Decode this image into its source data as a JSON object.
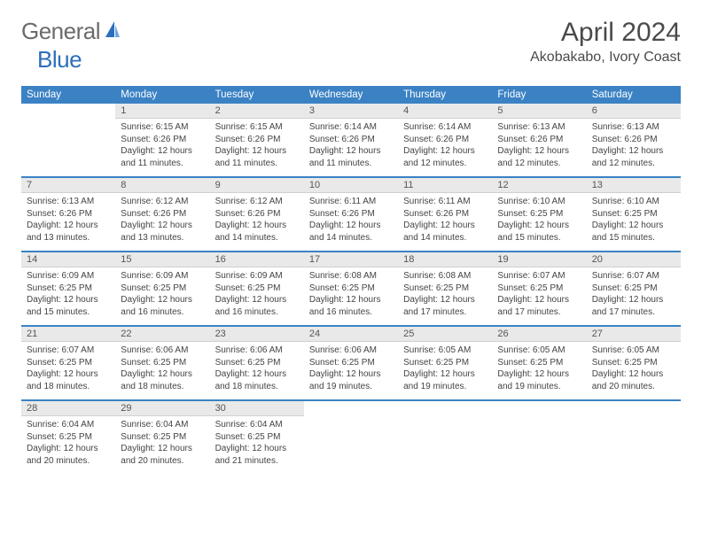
{
  "brand": {
    "name1": "General",
    "name2": "Blue"
  },
  "title": "April 2024",
  "location": "Akobakabo, Ivory Coast",
  "colors": {
    "header_bg": "#3b82c4",
    "header_text": "#ffffff",
    "daynum_bg": "#e9e9e9",
    "border": "#3b82c4",
    "page_bg": "#ffffff",
    "text": "#333333",
    "logo_gray": "#6b6b6b",
    "logo_blue": "#2c6fbb"
  },
  "day_headers": [
    "Sunday",
    "Monday",
    "Tuesday",
    "Wednesday",
    "Thursday",
    "Friday",
    "Saturday"
  ],
  "weeks": [
    [
      {
        "n": "",
        "sr": "",
        "ss": "",
        "dl": ""
      },
      {
        "n": "1",
        "sr": "Sunrise: 6:15 AM",
        "ss": "Sunset: 6:26 PM",
        "dl": "Daylight: 12 hours and 11 minutes."
      },
      {
        "n": "2",
        "sr": "Sunrise: 6:15 AM",
        "ss": "Sunset: 6:26 PM",
        "dl": "Daylight: 12 hours and 11 minutes."
      },
      {
        "n": "3",
        "sr": "Sunrise: 6:14 AM",
        "ss": "Sunset: 6:26 PM",
        "dl": "Daylight: 12 hours and 11 minutes."
      },
      {
        "n": "4",
        "sr": "Sunrise: 6:14 AM",
        "ss": "Sunset: 6:26 PM",
        "dl": "Daylight: 12 hours and 12 minutes."
      },
      {
        "n": "5",
        "sr": "Sunrise: 6:13 AM",
        "ss": "Sunset: 6:26 PM",
        "dl": "Daylight: 12 hours and 12 minutes."
      },
      {
        "n": "6",
        "sr": "Sunrise: 6:13 AM",
        "ss": "Sunset: 6:26 PM",
        "dl": "Daylight: 12 hours and 12 minutes."
      }
    ],
    [
      {
        "n": "7",
        "sr": "Sunrise: 6:13 AM",
        "ss": "Sunset: 6:26 PM",
        "dl": "Daylight: 12 hours and 13 minutes."
      },
      {
        "n": "8",
        "sr": "Sunrise: 6:12 AM",
        "ss": "Sunset: 6:26 PM",
        "dl": "Daylight: 12 hours and 13 minutes."
      },
      {
        "n": "9",
        "sr": "Sunrise: 6:12 AM",
        "ss": "Sunset: 6:26 PM",
        "dl": "Daylight: 12 hours and 14 minutes."
      },
      {
        "n": "10",
        "sr": "Sunrise: 6:11 AM",
        "ss": "Sunset: 6:26 PM",
        "dl": "Daylight: 12 hours and 14 minutes."
      },
      {
        "n": "11",
        "sr": "Sunrise: 6:11 AM",
        "ss": "Sunset: 6:26 PM",
        "dl": "Daylight: 12 hours and 14 minutes."
      },
      {
        "n": "12",
        "sr": "Sunrise: 6:10 AM",
        "ss": "Sunset: 6:25 PM",
        "dl": "Daylight: 12 hours and 15 minutes."
      },
      {
        "n": "13",
        "sr": "Sunrise: 6:10 AM",
        "ss": "Sunset: 6:25 PM",
        "dl": "Daylight: 12 hours and 15 minutes."
      }
    ],
    [
      {
        "n": "14",
        "sr": "Sunrise: 6:09 AM",
        "ss": "Sunset: 6:25 PM",
        "dl": "Daylight: 12 hours and 15 minutes."
      },
      {
        "n": "15",
        "sr": "Sunrise: 6:09 AM",
        "ss": "Sunset: 6:25 PM",
        "dl": "Daylight: 12 hours and 16 minutes."
      },
      {
        "n": "16",
        "sr": "Sunrise: 6:09 AM",
        "ss": "Sunset: 6:25 PM",
        "dl": "Daylight: 12 hours and 16 minutes."
      },
      {
        "n": "17",
        "sr": "Sunrise: 6:08 AM",
        "ss": "Sunset: 6:25 PM",
        "dl": "Daylight: 12 hours and 16 minutes."
      },
      {
        "n": "18",
        "sr": "Sunrise: 6:08 AM",
        "ss": "Sunset: 6:25 PM",
        "dl": "Daylight: 12 hours and 17 minutes."
      },
      {
        "n": "19",
        "sr": "Sunrise: 6:07 AM",
        "ss": "Sunset: 6:25 PM",
        "dl": "Daylight: 12 hours and 17 minutes."
      },
      {
        "n": "20",
        "sr": "Sunrise: 6:07 AM",
        "ss": "Sunset: 6:25 PM",
        "dl": "Daylight: 12 hours and 17 minutes."
      }
    ],
    [
      {
        "n": "21",
        "sr": "Sunrise: 6:07 AM",
        "ss": "Sunset: 6:25 PM",
        "dl": "Daylight: 12 hours and 18 minutes."
      },
      {
        "n": "22",
        "sr": "Sunrise: 6:06 AM",
        "ss": "Sunset: 6:25 PM",
        "dl": "Daylight: 12 hours and 18 minutes."
      },
      {
        "n": "23",
        "sr": "Sunrise: 6:06 AM",
        "ss": "Sunset: 6:25 PM",
        "dl": "Daylight: 12 hours and 18 minutes."
      },
      {
        "n": "24",
        "sr": "Sunrise: 6:06 AM",
        "ss": "Sunset: 6:25 PM",
        "dl": "Daylight: 12 hours and 19 minutes."
      },
      {
        "n": "25",
        "sr": "Sunrise: 6:05 AM",
        "ss": "Sunset: 6:25 PM",
        "dl": "Daylight: 12 hours and 19 minutes."
      },
      {
        "n": "26",
        "sr": "Sunrise: 6:05 AM",
        "ss": "Sunset: 6:25 PM",
        "dl": "Daylight: 12 hours and 19 minutes."
      },
      {
        "n": "27",
        "sr": "Sunrise: 6:05 AM",
        "ss": "Sunset: 6:25 PM",
        "dl": "Daylight: 12 hours and 20 minutes."
      }
    ],
    [
      {
        "n": "28",
        "sr": "Sunrise: 6:04 AM",
        "ss": "Sunset: 6:25 PM",
        "dl": "Daylight: 12 hours and 20 minutes."
      },
      {
        "n": "29",
        "sr": "Sunrise: 6:04 AM",
        "ss": "Sunset: 6:25 PM",
        "dl": "Daylight: 12 hours and 20 minutes."
      },
      {
        "n": "30",
        "sr": "Sunrise: 6:04 AM",
        "ss": "Sunset: 6:25 PM",
        "dl": "Daylight: 12 hours and 21 minutes."
      },
      {
        "n": "",
        "sr": "",
        "ss": "",
        "dl": ""
      },
      {
        "n": "",
        "sr": "",
        "ss": "",
        "dl": ""
      },
      {
        "n": "",
        "sr": "",
        "ss": "",
        "dl": ""
      },
      {
        "n": "",
        "sr": "",
        "ss": "",
        "dl": ""
      }
    ]
  ]
}
